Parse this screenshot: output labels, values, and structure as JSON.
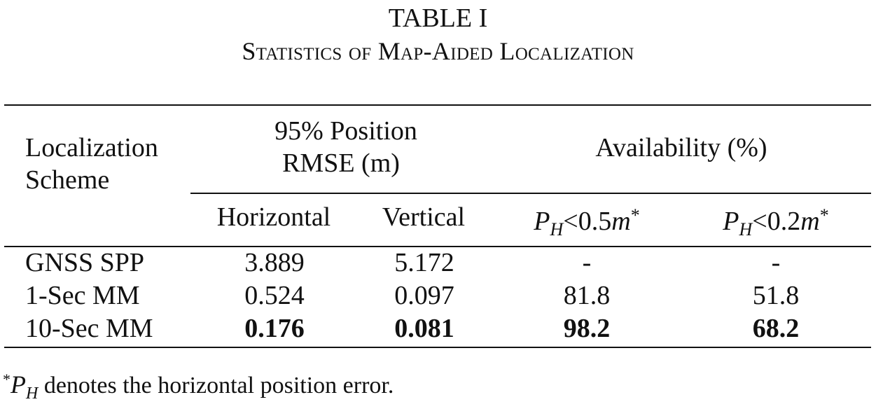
{
  "table": {
    "label": "TABLE I",
    "title": "Statistics of Map-Aided Localization",
    "header": {
      "scheme_line1": "Localization",
      "scheme_line2": "Scheme",
      "rmse_line1": "95% Position",
      "rmse_line2": "RMSE (m)",
      "availability": "Availability (%)",
      "horizontal": "Horizontal",
      "vertical": "Vertical",
      "ph_var": "P",
      "ph_sub": "H",
      "lt": "<",
      "thr1": "0.5",
      "thr2": "0.2",
      "unit": "m",
      "star": "*"
    },
    "rows": [
      {
        "scheme": "GNSS SPP",
        "horizontal": "3.889",
        "vertical": "5.172",
        "avail_05": "-",
        "avail_02": "-"
      },
      {
        "scheme": "1-Sec MM",
        "horizontal": "0.524",
        "vertical": "0.097",
        "avail_05": "81.8",
        "avail_02": "51.8"
      },
      {
        "scheme": "10-Sec MM",
        "horizontal": "0.176",
        "vertical": "0.081",
        "avail_05": "98.2",
        "avail_02": "68.2"
      }
    ],
    "footnote": {
      "star": "*",
      "ph_var": "P",
      "ph_sub": "H",
      "text": " denotes the horizontal position error."
    }
  }
}
